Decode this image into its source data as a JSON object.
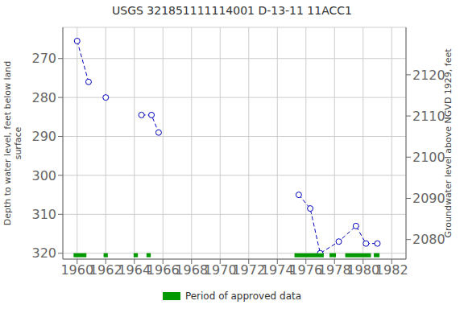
{
  "chart_data": {
    "type": "line",
    "title": "USGS 321851111114001 D-13-11 11ACC1",
    "ylabel": "Depth to water level, feet below land\nsurface",
    "y2label": "Groundwater level above NGVD 1929, feet",
    "x": [
      1960.0,
      1960.8,
      1962.0,
      1964.5,
      1965.2,
      1965.7,
      1975.5,
      1976.3,
      1977.0,
      1978.3,
      1979.5,
      1980.2,
      1981.0
    ],
    "series": [
      {
        "color": "#0000bb",
        "marker": "circle",
        "line_style": "dashed",
        "values": [
          265.5,
          276.0,
          280.0,
          284.5,
          284.5,
          289.0,
          305.0,
          308.5,
          320.0,
          317.0,
          313.0,
          317.5,
          317.5
        ],
        "segments": [
          [
            0,
            1
          ],
          [
            3,
            4,
            5
          ],
          [
            6,
            7,
            8,
            9,
            10,
            11,
            12
          ]
        ]
      }
    ],
    "xlim": [
      1959.0,
      1983.0
    ],
    "xticks": [
      1960,
      1962,
      1964,
      1966,
      1968,
      1970,
      1972,
      1974,
      1976,
      1978,
      1980,
      1982
    ],
    "ylim": [
      321.5,
      262.0
    ],
    "yticks": [
      270,
      280,
      290,
      300,
      310,
      320
    ],
    "y2lim": [
      2075.25,
      2131.5
    ],
    "y2ticks": [
      2120,
      2110,
      2100,
      2090,
      2080
    ],
    "grid": true,
    "approved": {
      "name": "Period of approved data",
      "color": "#009900",
      "y": 320.5,
      "segments": [
        [
          1959.75,
          1960.65
        ],
        [
          1961.85,
          1962.15
        ],
        [
          1963.95,
          1964.25
        ],
        [
          1964.85,
          1965.15
        ],
        [
          1975.2,
          1977.25
        ],
        [
          1977.65,
          1978.1
        ],
        [
          1978.75,
          1980.55
        ],
        [
          1980.75,
          1981.15
        ]
      ]
    }
  }
}
